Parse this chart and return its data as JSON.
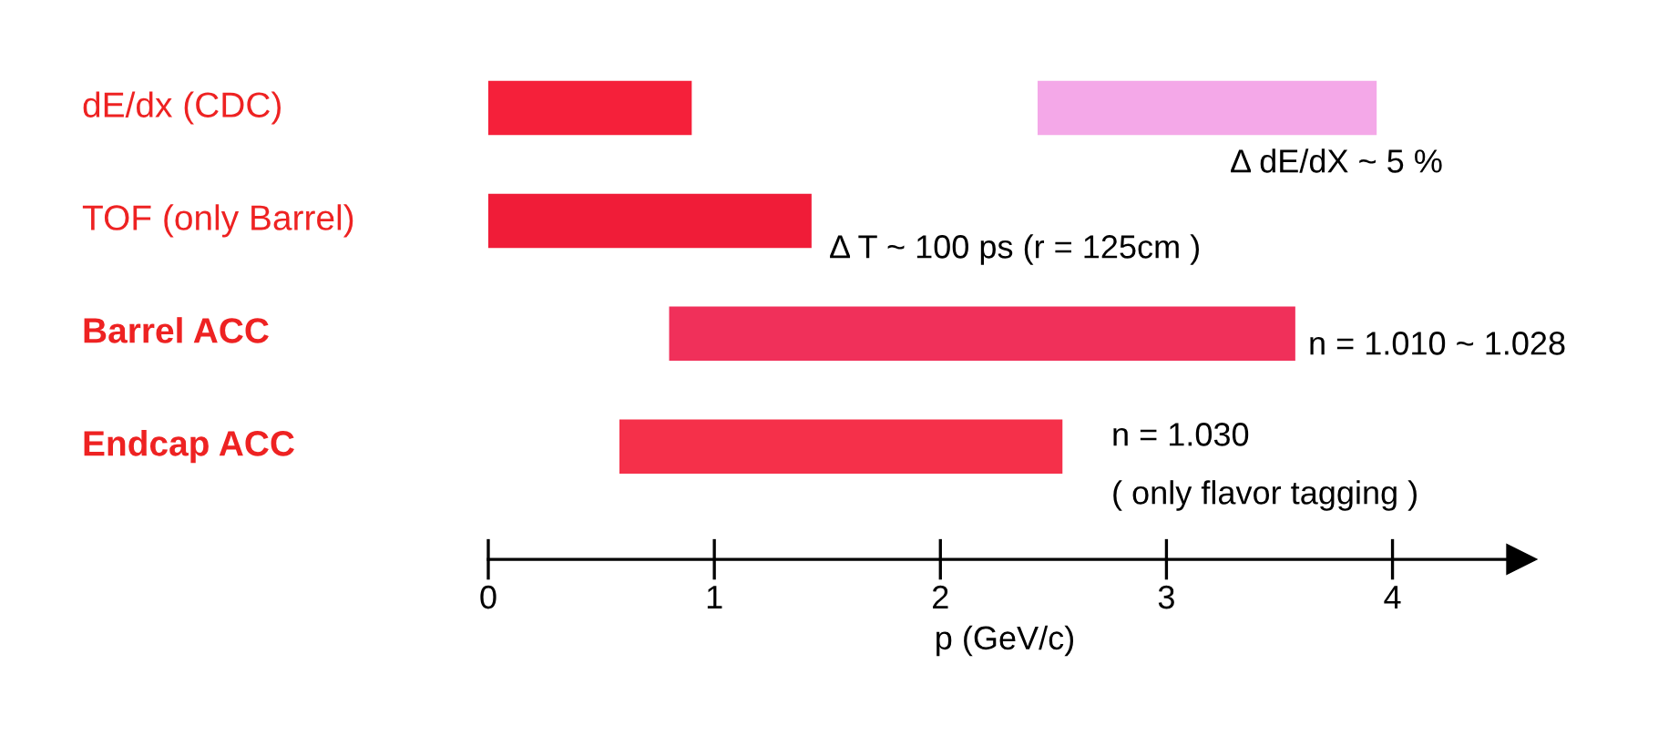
{
  "chart_data": {
    "type": "bar",
    "orientation": "horizontal",
    "xlabel": "p (GeV/c)",
    "categories": [
      "dE/dx (CDC)",
      "TOF (only Barrel)",
      "Barrel ACC",
      "Endcap ACC"
    ],
    "series": [
      {
        "colors": [
          "#f5203a",
          "#f01c38",
          "#f0305a",
          "#f5304a"
        ],
        "base": [
          0,
          0,
          0.8,
          0.58
        ],
        "values": [
          0.9,
          1.43,
          2.77,
          1.96
        ]
      },
      {
        "colors": [
          "#f4a8e8",
          null,
          null,
          null
        ],
        "base": [
          2.43,
          null,
          null,
          null
        ],
        "values": [
          1.5,
          null,
          null,
          null
        ]
      }
    ],
    "xlim": [
      0,
      4.57
    ],
    "xticks": [
      0,
      1,
      2,
      3,
      4
    ],
    "grid": false,
    "legend": false,
    "annotations": [
      "Δ dE/dX ~ 5 %",
      "Δ T ~ 100 ps (r = 125cm )",
      "n = 1.010 ~ 1.028",
      "n = 1.030",
      "( only flavor tagging )"
    ]
  }
}
